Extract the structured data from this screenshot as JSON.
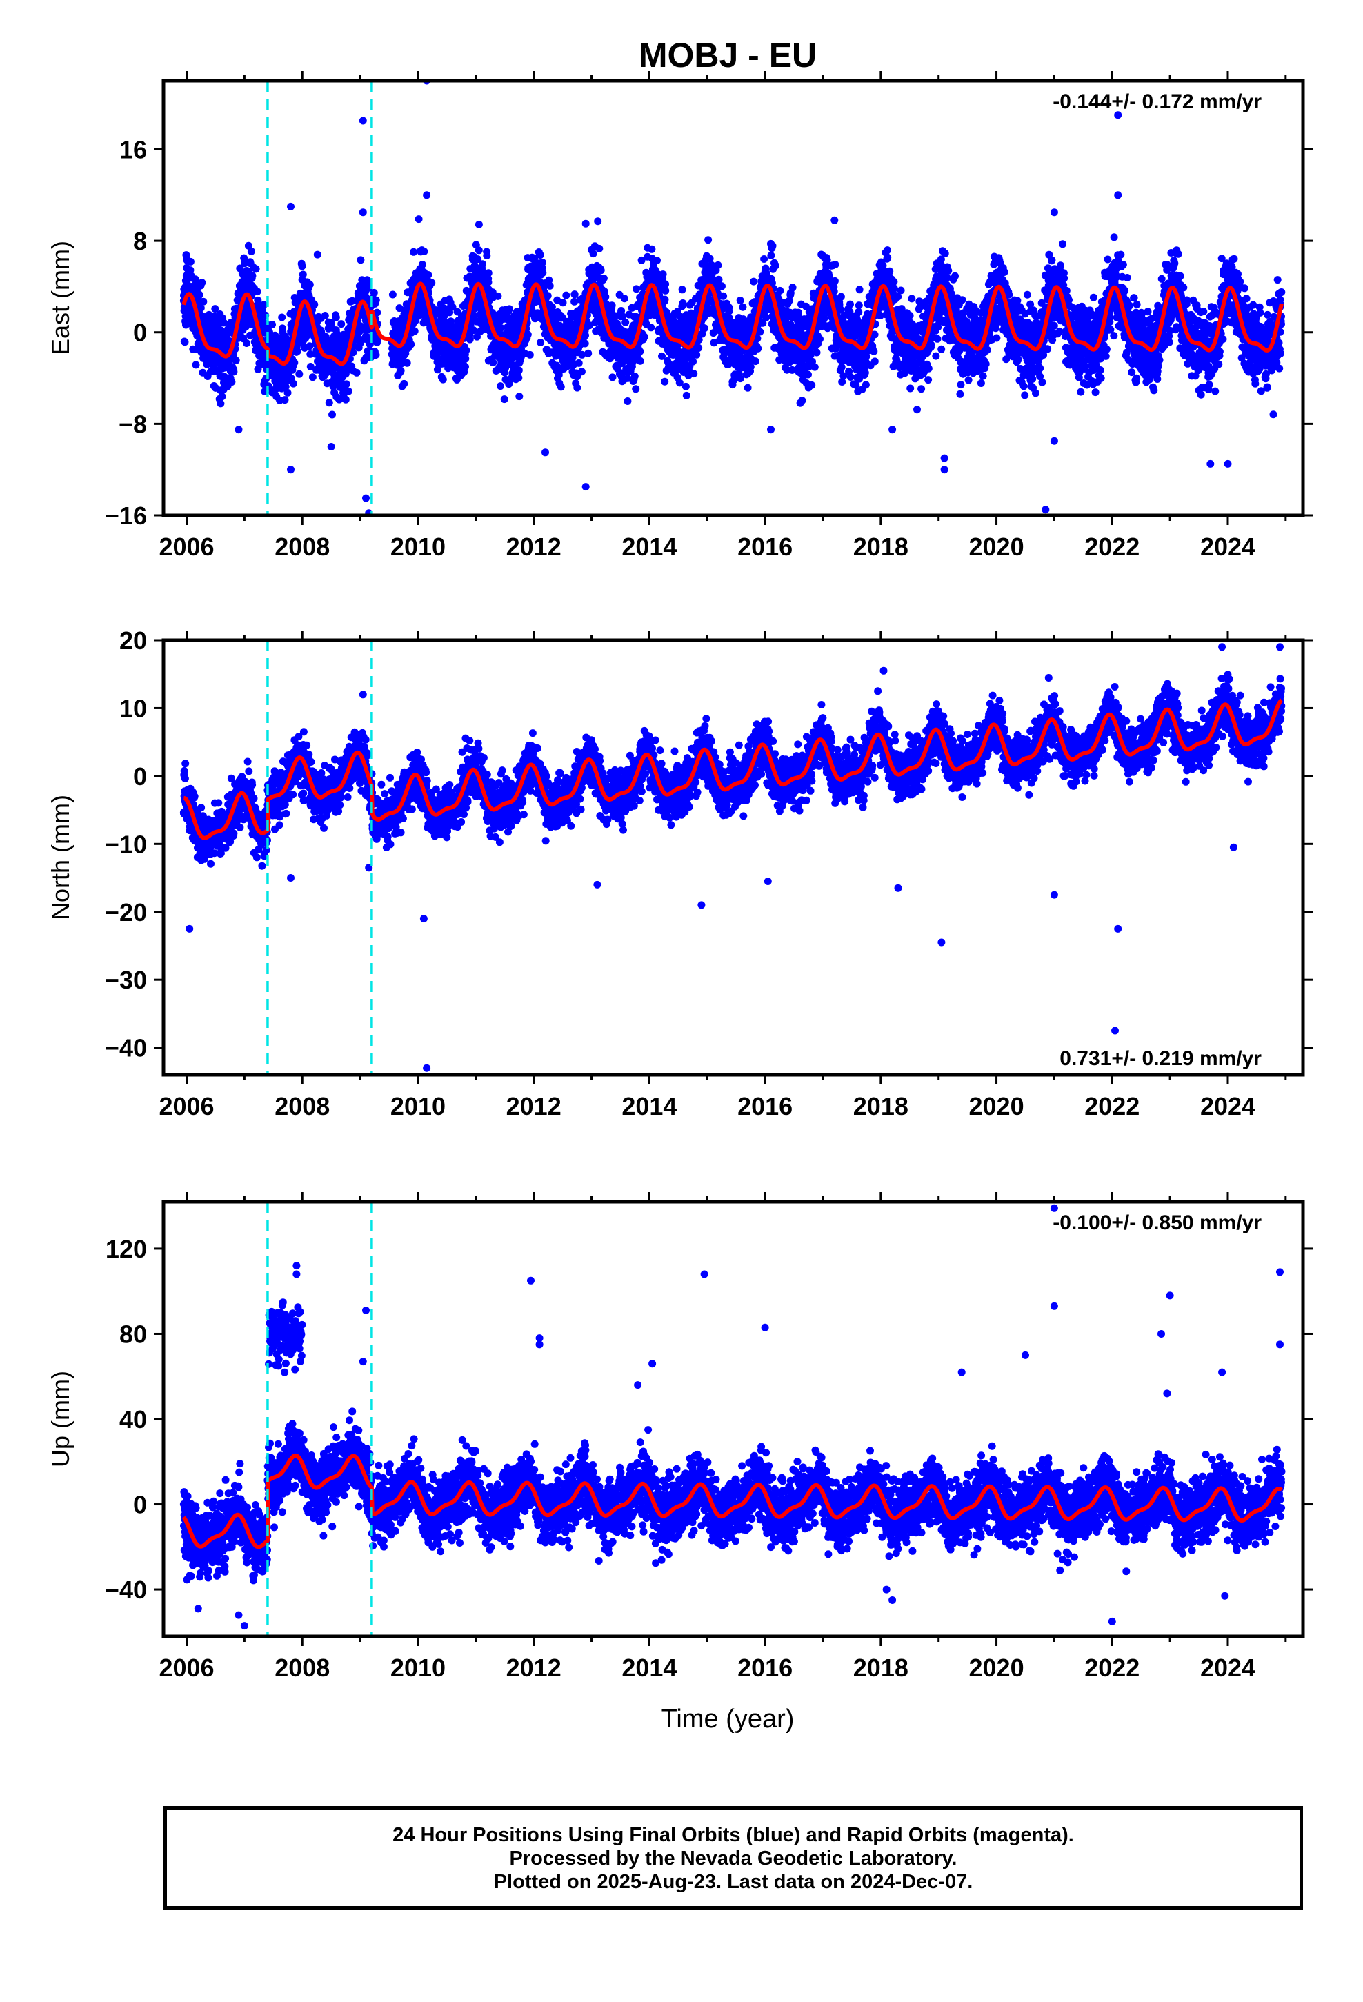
{
  "title": "MOBJ - EU",
  "xlabel": "Time (year)",
  "colors": {
    "data": "#0000ff",
    "model": "#ff0000",
    "offset": "#00e5e5",
    "axis": "#000000"
  },
  "chart_data": [
    {
      "type": "scatter",
      "ylabel": "East (mm)",
      "xlim": [
        2005.6,
        2025.3
      ],
      "ylim": [
        -16,
        22
      ],
      "xticks": [
        2006,
        2008,
        2010,
        2012,
        2014,
        2016,
        2018,
        2020,
        2022,
        2024
      ],
      "yticks": [
        -16,
        -8,
        0,
        8,
        16
      ],
      "rate": "-0.144+/- 0.172 mm/yr",
      "rate_position": "top-right",
      "offsets": [
        2007.4,
        2009.2
      ],
      "series": [
        {
          "kind": "daily-positions",
          "x_range": [
            2005.95,
            2024.93
          ],
          "trend_start": 0.0,
          "trend_end": -0.5,
          "annual_amplitude": 2.5,
          "annual_phase": 1.2,
          "scatter_sd": 1.6,
          "segment_shift": [
            0.0,
            -0.6,
            1.0
          ]
        },
        {
          "kind": "model",
          "x_range": [
            2005.95,
            2024.93
          ]
        }
      ],
      "outliers": [
        [
          2010.15,
          22
        ],
        [
          2009.05,
          18.5
        ],
        [
          2022.1,
          19
        ],
        [
          2022.1,
          12
        ],
        [
          2010.15,
          12
        ],
        [
          2007.8,
          11
        ],
        [
          2009.05,
          10.5
        ],
        [
          2012.9,
          9.5
        ],
        [
          2021.0,
          10.5
        ],
        [
          2017.2,
          9.8
        ],
        [
          2007.8,
          -12
        ],
        [
          2008.5,
          -10
        ],
        [
          2012.9,
          -13.5
        ],
        [
          2019.1,
          -12
        ],
        [
          2019.1,
          -11
        ],
        [
          2020.85,
          -15.5
        ],
        [
          2023.7,
          -11.5
        ],
        [
          2024.0,
          -11.5
        ],
        [
          2009.1,
          -14.5
        ],
        [
          2009.15,
          -15.8
        ],
        [
          2012.2,
          -10.5
        ],
        [
          2006.9,
          -8.5
        ],
        [
          2016.1,
          -8.5
        ],
        [
          2021.0,
          -9.5
        ],
        [
          2018.2,
          -8.5
        ]
      ]
    },
    {
      "type": "scatter",
      "ylabel": "North (mm)",
      "xlim": [
        2005.6,
        2025.3
      ],
      "ylim": [
        -44,
        20
      ],
      "xticks": [
        2006,
        2008,
        2010,
        2012,
        2014,
        2016,
        2018,
        2020,
        2022,
        2024
      ],
      "yticks": [
        -40,
        -30,
        -20,
        -10,
        0,
        10,
        20
      ],
      "rate": "0.731+/- 0.219 mm/yr",
      "rate_position": "bottom-right",
      "offsets": [
        2007.4,
        2009.2
      ],
      "series": [
        {
          "kind": "daily-positions",
          "x_range": [
            2005.95,
            2024.93
          ],
          "trend_start": -7.0,
          "trend_end": 7.0,
          "annual_amplitude": 2.8,
          "annual_phase": 2.0,
          "scatter_sd": 1.8,
          "segment_shift": [
            0.0,
            4.5,
            0.5
          ]
        },
        {
          "kind": "model",
          "x_range": [
            2005.95,
            2024.93
          ]
        }
      ],
      "outliers": [
        [
          2010.15,
          -43
        ],
        [
          2022.05,
          -37.5
        ],
        [
          2019.05,
          -24.5
        ],
        [
          2022.1,
          -22.5
        ],
        [
          2006.05,
          -22.5
        ],
        [
          2014.9,
          -19
        ],
        [
          2021.0,
          -17.5
        ],
        [
          2018.3,
          -16.5
        ],
        [
          2024.1,
          -10.5
        ],
        [
          2024.9,
          19
        ],
        [
          2023.9,
          19
        ],
        [
          2018.05,
          15.5
        ],
        [
          2017.95,
          12.5
        ],
        [
          2009.05,
          12
        ],
        [
          2009.15,
          -13.5
        ],
        [
          2007.8,
          -15
        ],
        [
          2016.05,
          -15.5
        ],
        [
          2010.1,
          -21
        ],
        [
          2013.1,
          -16
        ]
      ]
    },
    {
      "type": "scatter",
      "ylabel": "Up (mm)",
      "xlim": [
        2005.6,
        2025.3
      ],
      "ylim": [
        -62,
        142
      ],
      "xticks": [
        2006,
        2008,
        2010,
        2012,
        2014,
        2016,
        2018,
        2020,
        2022,
        2024
      ],
      "yticks": [
        -40,
        0,
        40,
        80,
        120
      ],
      "rate": "-0.100+/- 0.850 mm/yr",
      "rate_position": "top-right",
      "offsets": [
        2007.4,
        2009.2
      ],
      "series": [
        {
          "kind": "daily-positions",
          "x_range": [
            2005.95,
            2024.93
          ],
          "trend_start": 3.0,
          "trend_end": -1.0,
          "annual_amplitude": 6.5,
          "annual_phase": 2.6,
          "scatter_sd": 7.5,
          "segment_shift": [
            -16.0,
            12.0,
            0.0
          ]
        },
        {
          "kind": "model",
          "x_range": [
            2005.95,
            2024.93
          ]
        }
      ],
      "outliers": [
        [
          2021.0,
          139
        ],
        [
          2007.9,
          112
        ],
        [
          2007.9,
          108
        ],
        [
          2014.95,
          108
        ],
        [
          2024.9,
          109
        ],
        [
          2011.95,
          105
        ],
        [
          2023.0,
          98
        ],
        [
          2021.0,
          93
        ],
        [
          2009.1,
          91
        ],
        [
          2016.0,
          83
        ],
        [
          2022.85,
          80
        ],
        [
          2012.1,
          78
        ],
        [
          2012.1,
          75
        ],
        [
          2020.5,
          70
        ],
        [
          2014.05,
          66
        ],
        [
          2013.8,
          56
        ],
        [
          2024.9,
          75
        ],
        [
          2022.95,
          52
        ],
        [
          2019.4,
          62
        ],
        [
          2023.9,
          62
        ],
        [
          2009.05,
          67
        ],
        [
          2006.9,
          -52
        ],
        [
          2007.0,
          -57
        ],
        [
          2006.2,
          -49
        ],
        [
          2022.0,
          -55
        ],
        [
          2018.2,
          -45
        ],
        [
          2023.95,
          -43
        ],
        [
          2021.1,
          -31
        ],
        [
          2018.1,
          -40
        ]
      ]
    }
  ],
  "footer": {
    "line1": "24 Hour Positions Using Final Orbits (blue) and Rapid Orbits (magenta).",
    "line2": "Processed by the Nevada Geodetic Laboratory.",
    "line3": "Plotted on 2025-Aug-23. Last data on 2024-Dec-07."
  }
}
